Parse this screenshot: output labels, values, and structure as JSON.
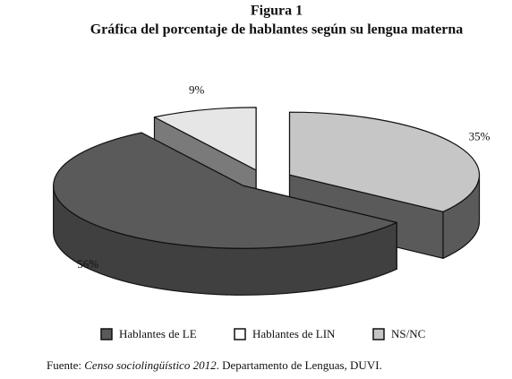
{
  "chart_data": {
    "type": "pie3d",
    "title": "Figura 1",
    "subtitle": "Gráfica del porcentaje de hablantes según su lengua materna",
    "categories": [
      "Hablantes de LE",
      "Hablantes de LIN",
      "NS/NC"
    ],
    "values": [
      56,
      9,
      35
    ],
    "value_labels": [
      "56%",
      "9%",
      "35%"
    ],
    "colors": [
      "#5a5a5a",
      "#e6e6e6",
      "#c6c6c6"
    ],
    "side_colors": [
      "#404040",
      "#7a7a7a",
      "#5a5a5a"
    ],
    "source": {
      "prefix": "Fuente: ",
      "title": "Censo sociolingüístico 2012",
      "suffix": ". Departamento de Lenguas, DUVI."
    }
  }
}
